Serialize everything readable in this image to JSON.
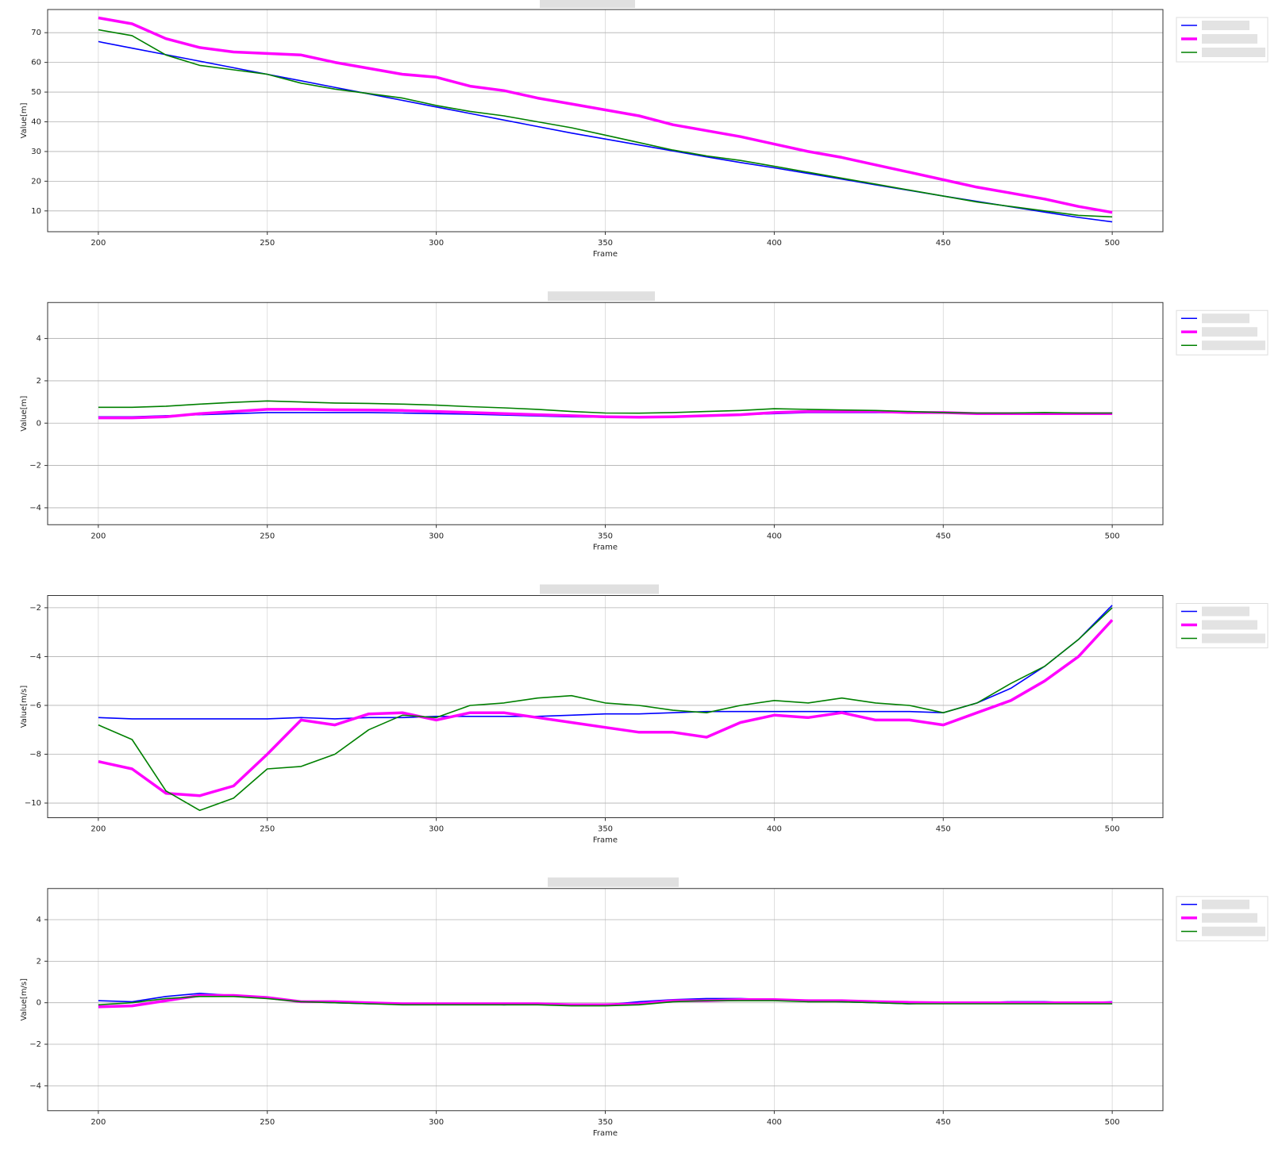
{
  "chart_data": [
    {
      "type": "line",
      "xlabel": "Frame",
      "ylabel": "Value[m]",
      "x": [
        200,
        210,
        220,
        230,
        240,
        250,
        260,
        270,
        280,
        290,
        300,
        310,
        320,
        330,
        340,
        350,
        360,
        370,
        380,
        390,
        400,
        410,
        420,
        430,
        440,
        450,
        460,
        470,
        480,
        490,
        500
      ],
      "xlim": [
        185,
        515
      ],
      "xticks": [
        200,
        250,
        300,
        350,
        400,
        450,
        500
      ],
      "ylim": [
        3,
        77.8
      ],
      "yticks": [
        10,
        20,
        30,
        40,
        50,
        60,
        70
      ],
      "grid": true,
      "series": [
        {
          "color": "#0000ff",
          "values": [
            67,
            64.8,
            62.6,
            60.4,
            58.2,
            56,
            53.8,
            51.6,
            49.4,
            47.2,
            45,
            42.8,
            40.6,
            38.4,
            36.2,
            34.2,
            32.2,
            30.2,
            28.2,
            26.3,
            24.5,
            22.6,
            20.7,
            18.8,
            16.9,
            15,
            13.2,
            11.4,
            9.6,
            7.8,
            6.3
          ]
        },
        {
          "color": "#ff00ff",
          "values": [
            75,
            73,
            68,
            65,
            63.5,
            63,
            62.5,
            60,
            58,
            56,
            55,
            52,
            50.5,
            48,
            46,
            44,
            42,
            39,
            37,
            35,
            32.5,
            30,
            28,
            25.5,
            23,
            20.5,
            18,
            16,
            14,
            11.5,
            9.5
          ]
        },
        {
          "color": "#008000",
          "values": [
            71,
            69,
            62.5,
            59,
            57.5,
            56,
            53,
            51,
            49.5,
            48,
            45.5,
            43.5,
            42,
            40,
            38,
            35.5,
            33,
            30.5,
            28.5,
            27,
            25,
            23,
            21,
            19,
            17,
            15,
            13,
            11.5,
            10,
            8.5,
            8
          ]
        }
      ]
    },
    {
      "type": "line",
      "xlabel": "Frame",
      "ylabel": "Value[m]",
      "x": [
        200,
        210,
        220,
        230,
        240,
        250,
        260,
        270,
        280,
        290,
        300,
        310,
        320,
        330,
        340,
        350,
        360,
        370,
        380,
        390,
        400,
        410,
        420,
        430,
        440,
        450,
        460,
        470,
        480,
        490,
        500
      ],
      "xlim": [
        185,
        515
      ],
      "xticks": [
        200,
        250,
        300,
        350,
        400,
        450,
        500
      ],
      "ylim": [
        -4.8,
        5.7
      ],
      "yticks": [
        {
          "value": -4,
          "label": "−4"
        },
        {
          "value": -2,
          "label": "−2"
        },
        0,
        2,
        4
      ],
      "grid": true,
      "series": [
        {
          "color": "#0000ff",
          "values": [
            0.3,
            0.3,
            0.35,
            0.4,
            0.45,
            0.5,
            0.5,
            0.5,
            0.5,
            0.48,
            0.45,
            0.42,
            0.38,
            0.34,
            0.3,
            0.28,
            0.28,
            0.3,
            0.35,
            0.4,
            0.45,
            0.5,
            0.5,
            0.5,
            0.5,
            0.48,
            0.45,
            0.45,
            0.48,
            0.45,
            0.48
          ]
        },
        {
          "color": "#ff00ff",
          "values": [
            0.25,
            0.25,
            0.3,
            0.45,
            0.55,
            0.65,
            0.65,
            0.63,
            0.62,
            0.6,
            0.55,
            0.5,
            0.45,
            0.4,
            0.35,
            0.3,
            0.28,
            0.3,
            0.35,
            0.4,
            0.5,
            0.55,
            0.55,
            0.55,
            0.5,
            0.5,
            0.45,
            0.45,
            0.45,
            0.45,
            0.45
          ]
        },
        {
          "color": "#008000",
          "values": [
            0.75,
            0.75,
            0.8,
            0.9,
            0.98,
            1.05,
            1.0,
            0.95,
            0.93,
            0.9,
            0.85,
            0.78,
            0.72,
            0.65,
            0.55,
            0.48,
            0.47,
            0.5,
            0.55,
            0.6,
            0.68,
            0.65,
            0.62,
            0.6,
            0.55,
            0.5,
            0.48,
            0.48,
            0.5,
            0.48,
            0.48
          ]
        }
      ]
    },
    {
      "type": "line",
      "xlabel": "Frame",
      "ylabel": "Value[m/s]",
      "x": [
        200,
        210,
        220,
        230,
        240,
        250,
        260,
        270,
        280,
        290,
        300,
        310,
        320,
        330,
        340,
        350,
        360,
        370,
        380,
        390,
        400,
        410,
        420,
        430,
        440,
        450,
        460,
        470,
        480,
        490,
        500
      ],
      "xlim": [
        185,
        515
      ],
      "xticks": [
        200,
        250,
        300,
        350,
        400,
        450,
        500
      ],
      "ylim": [
        -10.6,
        -1.5
      ],
      "yticks": [
        {
          "value": -10,
          "label": "−10"
        },
        {
          "value": -8,
          "label": "−8"
        },
        {
          "value": -6,
          "label": "−6"
        },
        {
          "value": -4,
          "label": "−4"
        },
        {
          "value": -2,
          "label": "−2"
        }
      ],
      "grid": true,
      "series": [
        {
          "color": "#0000ff",
          "values": [
            -6.5,
            -6.55,
            -6.55,
            -6.55,
            -6.55,
            -6.55,
            -6.5,
            -6.55,
            -6.5,
            -6.5,
            -6.45,
            -6.45,
            -6.45,
            -6.45,
            -6.4,
            -6.35,
            -6.35,
            -6.3,
            -6.25,
            -6.25,
            -6.25,
            -6.25,
            -6.25,
            -6.25,
            -6.25,
            -6.3,
            -5.9,
            -5.3,
            -4.4,
            -3.3,
            -1.9
          ]
        },
        {
          "color": "#ff00ff",
          "values": [
            -8.3,
            -8.6,
            -9.6,
            -9.7,
            -9.3,
            -8.0,
            -6.6,
            -6.8,
            -6.35,
            -6.3,
            -6.6,
            -6.3,
            -6.3,
            -6.5,
            -6.7,
            -6.9,
            -7.1,
            -7.1,
            -7.3,
            -6.7,
            -6.4,
            -6.5,
            -6.3,
            -6.6,
            -6.6,
            -6.8,
            -6.3,
            -5.8,
            -5.0,
            -4.0,
            -2.5
          ]
        },
        {
          "color": "#008000",
          "values": [
            -6.8,
            -7.4,
            -9.5,
            -10.3,
            -9.8,
            -8.6,
            -8.5,
            -8.0,
            -7.0,
            -6.4,
            -6.5,
            -6.0,
            -5.9,
            -5.7,
            -5.6,
            -5.9,
            -6.0,
            -6.2,
            -6.3,
            -6.0,
            -5.8,
            -5.9,
            -5.7,
            -5.9,
            -6.0,
            -6.3,
            -5.9,
            -5.1,
            -4.4,
            -3.3,
            -2.0
          ]
        }
      ]
    },
    {
      "type": "line",
      "xlabel": "Frame",
      "ylabel": "Value[m/s]",
      "x": [
        200,
        210,
        220,
        230,
        240,
        250,
        260,
        270,
        280,
        290,
        300,
        310,
        320,
        330,
        340,
        350,
        360,
        370,
        380,
        390,
        400,
        410,
        420,
        430,
        440,
        450,
        460,
        470,
        480,
        490,
        500
      ],
      "xlim": [
        185,
        515
      ],
      "xticks": [
        200,
        250,
        300,
        350,
        400,
        450,
        500
      ],
      "ylim": [
        -5.2,
        5.5
      ],
      "yticks": [
        {
          "value": -4,
          "label": "−4"
        },
        {
          "value": -2,
          "label": "−2"
        },
        0,
        2,
        4
      ],
      "grid": true,
      "series": [
        {
          "color": "#0000ff",
          "values": [
            0.1,
            0.05,
            0.3,
            0.45,
            0.35,
            0.25,
            0.05,
            0.0,
            -0.05,
            -0.05,
            -0.05,
            -0.05,
            -0.1,
            -0.05,
            -0.1,
            -0.1,
            0.05,
            0.15,
            0.2,
            0.2,
            0.15,
            0.1,
            0.05,
            0,
            -0.05,
            0,
            0,
            0.05,
            0.05,
            0,
            0.05
          ]
        },
        {
          "color": "#ff00ff",
          "values": [
            -0.2,
            -0.15,
            0.1,
            0.35,
            0.35,
            0.25,
            0.05,
            0.05,
            0,
            -0.05,
            -0.05,
            -0.05,
            -0.05,
            -0.05,
            -0.1,
            -0.1,
            -0.05,
            0.1,
            0.1,
            0.15,
            0.15,
            0.1,
            0.1,
            0.05,
            0.02,
            0,
            0,
            0,
            0,
            0,
            0
          ]
        },
        {
          "color": "#008000",
          "values": [
            -0.1,
            0,
            0.2,
            0.3,
            0.3,
            0.2,
            0.05,
            0,
            -0.05,
            -0.1,
            -0.1,
            -0.1,
            -0.1,
            -0.1,
            -0.15,
            -0.15,
            -0.1,
            0.05,
            0.1,
            0.1,
            0.1,
            0.05,
            0.05,
            0,
            -0.05,
            -0.05,
            -0.05,
            -0.05,
            -0.05,
            -0.05,
            -0.05
          ]
        }
      ]
    }
  ]
}
